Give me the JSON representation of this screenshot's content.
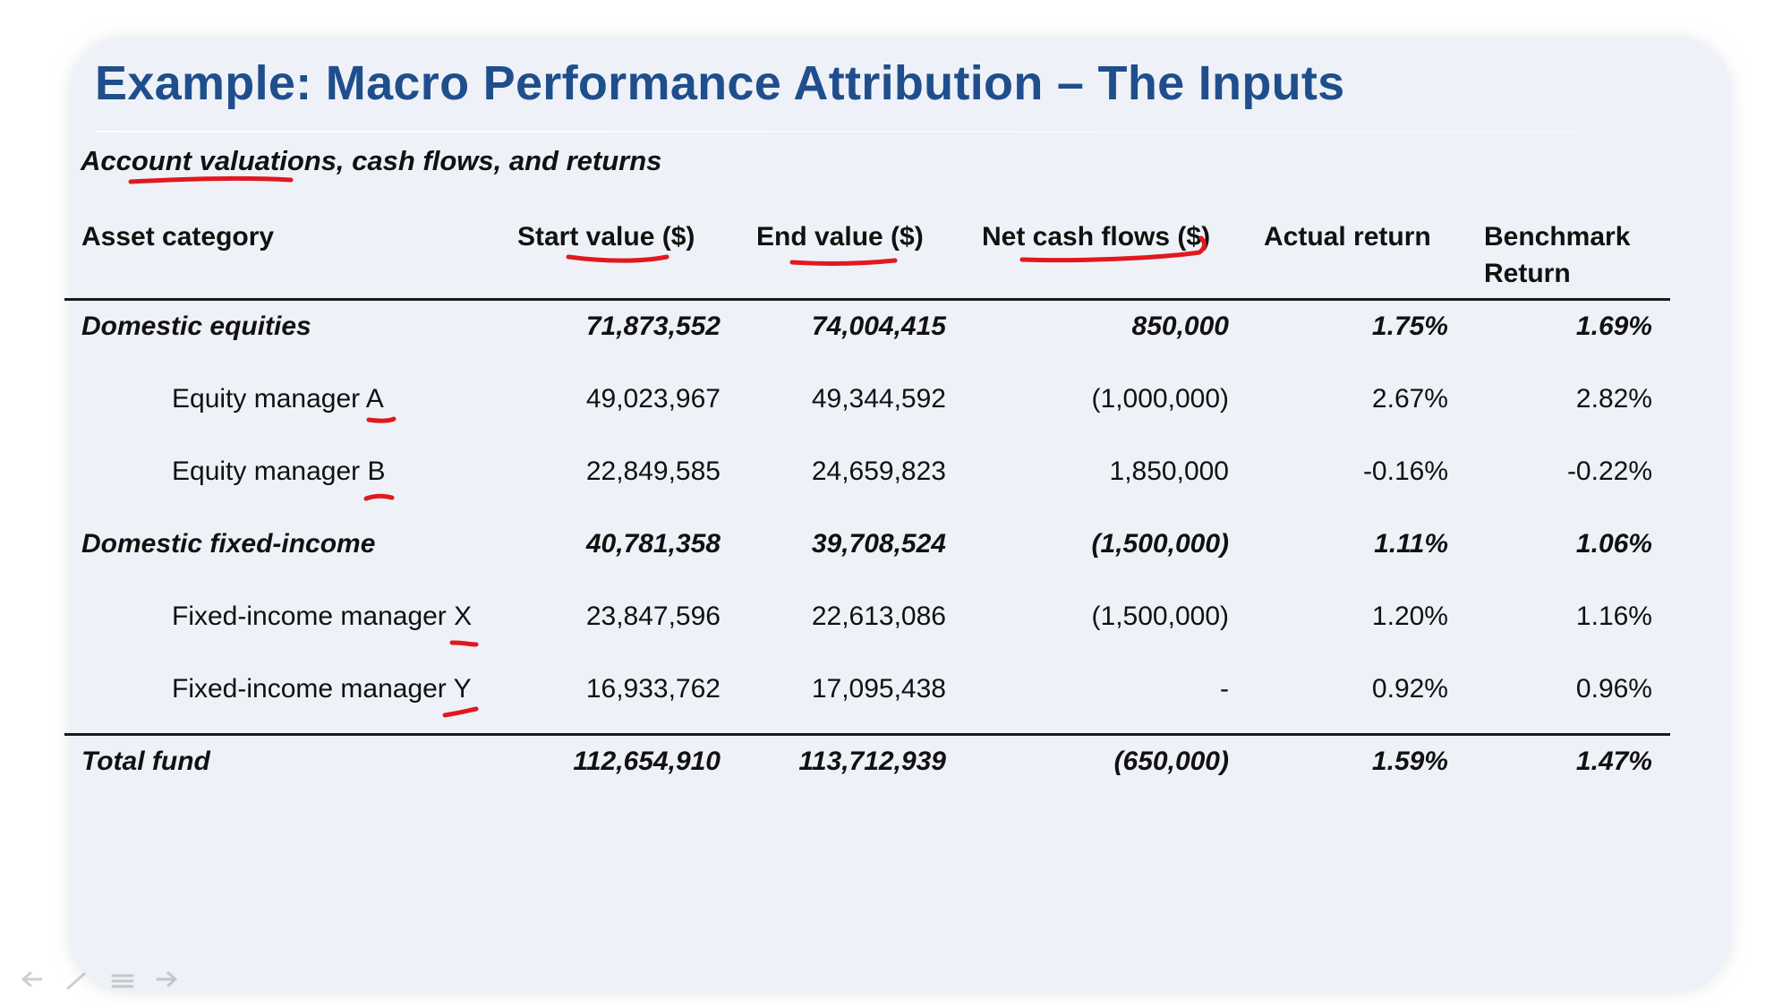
{
  "slide": {
    "title": "Example: Macro Performance  Attribution – The Inputs",
    "subtitle": "Account valuations, cash flows, and returns"
  },
  "table": {
    "headers": {
      "asset_category": "Asset category",
      "start_value": "Start value ($)",
      "end_value": "End value ($)",
      "net_cash_flows": "Net cash flows ($)",
      "actual_return": "Actual return",
      "benchmark_return_line1": "Benchmark",
      "benchmark_return_line2": "Return"
    },
    "rows": [
      {
        "category": "Domestic equities",
        "start": "71,873,552",
        "end": "74,004,415",
        "cash": "850,000",
        "actual": "1.75%",
        "benchmark": "1.69%"
      },
      {
        "category": "Equity manager A",
        "start": "49,023,967",
        "end": "49,344,592",
        "cash": "(1,000,000)",
        "actual": "2.67%",
        "benchmark": "2.82%"
      },
      {
        "category": "Equity manager B",
        "start": "22,849,585",
        "end": "24,659,823",
        "cash": "1,850,000",
        "actual": "-0.16%",
        "benchmark": "-0.22%"
      },
      {
        "category": "Domestic fixed-income",
        "start": "40,781,358",
        "end": "39,708,524",
        "cash": "(1,500,000)",
        "actual": "1.11%",
        "benchmark": "1.06%"
      },
      {
        "category": "Fixed-income manager X",
        "start": "23,847,596",
        "end": "22,613,086",
        "cash": "(1,500,000)",
        "actual": "1.20%",
        "benchmark": "1.16%"
      },
      {
        "category": "Fixed-income manager Y",
        "start": "16,933,762",
        "end": "17,095,438",
        "cash": "-",
        "actual": "0.92%",
        "benchmark": "0.96%"
      }
    ],
    "total": {
      "category": "Total fund",
      "start": "112,654,910",
      "end": "113,712,939",
      "cash": "(650,000)",
      "actual": "1.59%",
      "benchmark": "1.47%"
    }
  },
  "annotation": {
    "ink_color": "#e0191f"
  },
  "player_controls": [
    {
      "icon": "back-arrow-icon"
    },
    {
      "icon": "pen-icon"
    },
    {
      "icon": "menu-icon"
    },
    {
      "icon": "forward-arrow-icon"
    }
  ]
}
